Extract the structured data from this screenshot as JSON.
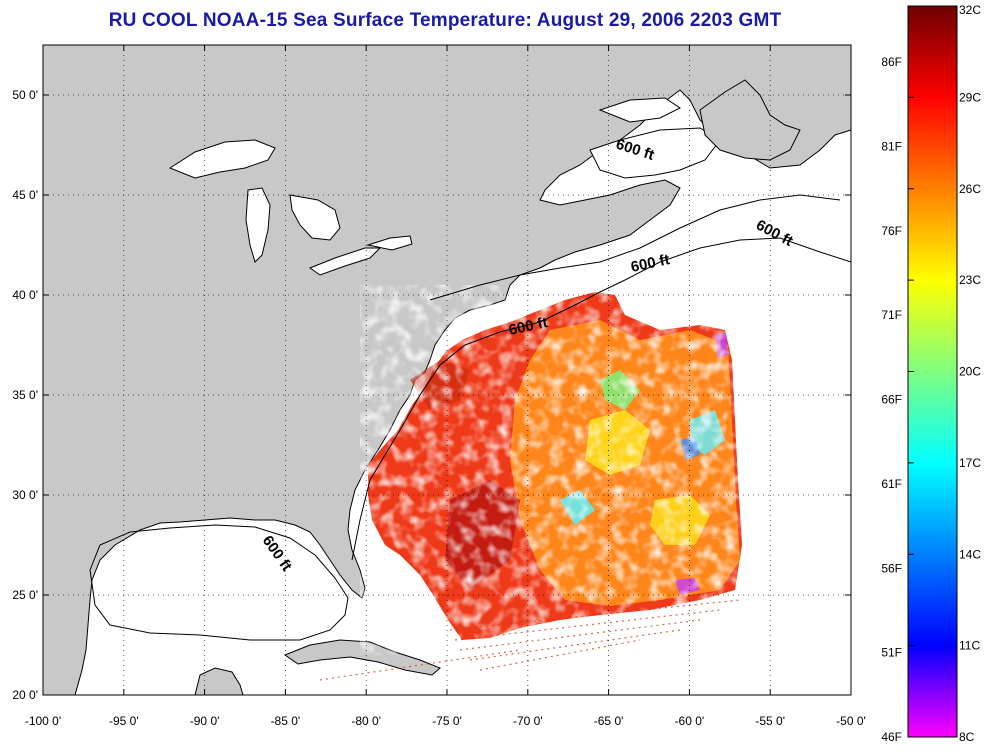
{
  "title": "RU COOL  NOAA-15  Sea Surface Temperature:  August 29, 2006 2203 GMT",
  "map": {
    "lon_range": [
      -100,
      -50
    ],
    "lat_range": [
      20,
      52.5
    ],
    "lon_ticks": [
      "-100 0'",
      "-95 0'",
      "-90 0'",
      "-85 0'",
      "-80 0'",
      "-75 0'",
      "-70 0'",
      "-65 0'",
      "-60 0'",
      "-55 0'",
      "-50 0'"
    ],
    "lat_ticks": [
      "20 0'",
      "25 0'",
      "30 0'",
      "35 0'",
      "40 0'",
      "45 0'",
      "50 0'"
    ],
    "grid": "dotted",
    "land_color": "#c8c8c8",
    "water_color": "#ffffff",
    "depth_contour_labels": [
      "600 ft",
      "600 ft",
      "600 ft",
      "600 ft",
      "600 ft"
    ]
  },
  "colorbar": {
    "celsius_labels": [
      "32C",
      "29C",
      "26C",
      "23C",
      "20C",
      "17C",
      "14C",
      "11C",
      "8C"
    ],
    "fahrenheit_labels": [
      "86F",
      "81F",
      "76F",
      "71F",
      "66F",
      "61F",
      "56F",
      "51F",
      "46F"
    ],
    "colors": [
      "#7a0000",
      "#ff0000",
      "#ff7f00",
      "#ffff00",
      "#7fff7f",
      "#00ffff",
      "#007fff",
      "#0000ff",
      "#ff00ff"
    ]
  }
}
